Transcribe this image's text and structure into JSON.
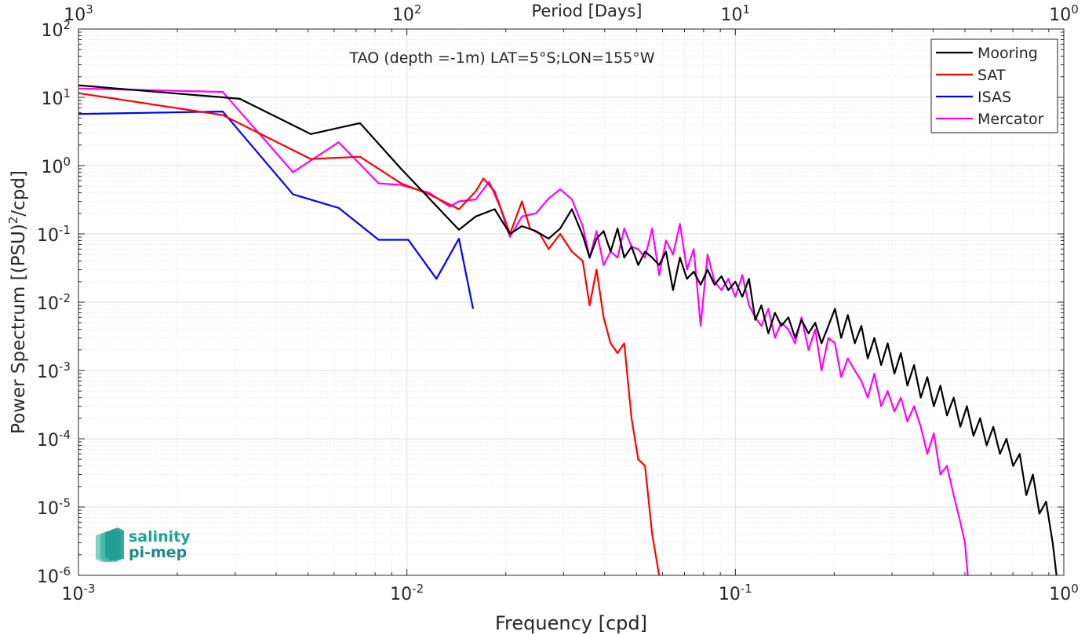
{
  "chart_data": {
    "type": "line",
    "title": "TAO (depth =-1m) LAT=5°S;LON=155°W",
    "xlabel": "Frequency [cpd]",
    "ylabel": "Power Spectrum [(PSU)²/cpd]",
    "ylabel_parts": {
      "a": "Power Spectrum [(PSU)",
      "sup": "2",
      "b": "/cpd]"
    },
    "top_xlabel": "Period [Days]",
    "x_scale": "log",
    "y_scale": "log",
    "xlim": [
      0.001,
      1
    ],
    "ylim": [
      1e-06,
      100
    ],
    "grid": true,
    "legend_position": "top-right",
    "x_ticks": [
      {
        "value": 0.001,
        "base": "10",
        "exp": "-3"
      },
      {
        "value": 0.01,
        "base": "10",
        "exp": "-2"
      },
      {
        "value": 0.1,
        "base": "10",
        "exp": "-1"
      },
      {
        "value": 1,
        "base": "10",
        "exp": "0"
      }
    ],
    "top_ticks": [
      {
        "value": 0.001,
        "base": "10",
        "exp": "3"
      },
      {
        "value": 0.01,
        "base": "10",
        "exp": "2"
      },
      {
        "value": 0.1,
        "base": "10",
        "exp": "1"
      },
      {
        "value": 1,
        "base": "10",
        "exp": "0"
      }
    ],
    "y_ticks": [
      {
        "value": 100,
        "base": "10",
        "exp": "2"
      },
      {
        "value": 10,
        "base": "10",
        "exp": "1"
      },
      {
        "value": 1,
        "base": "10",
        "exp": "0"
      },
      {
        "value": 0.1,
        "base": "10",
        "exp": "-1"
      },
      {
        "value": 0.01,
        "base": "10",
        "exp": "-2"
      },
      {
        "value": 0.001,
        "base": "10",
        "exp": "-3"
      },
      {
        "value": 0.0001,
        "base": "10",
        "exp": "-4"
      },
      {
        "value": 1e-05,
        "base": "10",
        "exp": "-5"
      },
      {
        "value": 1e-06,
        "base": "10",
        "exp": "-6"
      }
    ],
    "series": [
      {
        "name": "Mooring",
        "color": "#000000",
        "points": [
          [
            0.001,
            15
          ],
          [
            0.00275,
            10
          ],
          [
            0.0031,
            9.5
          ],
          [
            0.0051,
            2.9
          ],
          [
            0.0072,
            4.2
          ],
          [
            0.0096,
            0.9
          ],
          [
            0.0117,
            0.33
          ],
          [
            0.0144,
            0.115
          ],
          [
            0.0162,
            0.18
          ],
          [
            0.0185,
            0.23
          ],
          [
            0.0206,
            0.1
          ],
          [
            0.0224,
            0.13
          ],
          [
            0.0247,
            0.11
          ],
          [
            0.027,
            0.085
          ],
          [
            0.0293,
            0.12
          ],
          [
            0.0318,
            0.23
          ],
          [
            0.0343,
            0.095
          ],
          [
            0.036,
            0.045
          ],
          [
            0.0378,
            0.085
          ],
          [
            0.0397,
            0.11
          ],
          [
            0.0417,
            0.055
          ],
          [
            0.0438,
            0.12
          ],
          [
            0.0459,
            0.045
          ],
          [
            0.0483,
            0.065
          ],
          [
            0.0506,
            0.035
          ],
          [
            0.0531,
            0.055
          ],
          [
            0.0558,
            0.045
          ],
          [
            0.0586,
            0.035
          ],
          [
            0.0615,
            0.055
          ],
          [
            0.0646,
            0.015
          ],
          [
            0.0678,
            0.045
          ],
          [
            0.0712,
            0.022
          ],
          [
            0.0747,
            0.028
          ],
          [
            0.0784,
            0.018
          ],
          [
            0.0823,
            0.03
          ],
          [
            0.0864,
            0.018
          ],
          [
            0.0907,
            0.024
          ],
          [
            0.0952,
            0.015
          ],
          [
            0.1,
            0.02
          ],
          [
            0.105,
            0.012
          ],
          [
            0.11,
            0.022
          ],
          [
            0.115,
            0.0055
          ],
          [
            0.12,
            0.009
          ],
          [
            0.126,
            0.0035
          ],
          [
            0.132,
            0.007
          ],
          [
            0.138,
            0.0045
          ],
          [
            0.145,
            0.006
          ],
          [
            0.152,
            0.003
          ],
          [
            0.159,
            0.0055
          ],
          [
            0.167,
            0.0035
          ],
          [
            0.175,
            0.005
          ],
          [
            0.183,
            0.0025
          ],
          [
            0.192,
            0.0045
          ],
          [
            0.201,
            0.008
          ],
          [
            0.21,
            0.003
          ],
          [
            0.22,
            0.0065
          ],
          [
            0.231,
            0.0025
          ],
          [
            0.242,
            0.0045
          ],
          [
            0.253,
            0.0015
          ],
          [
            0.265,
            0.003
          ],
          [
            0.278,
            0.0012
          ],
          [
            0.291,
            0.0025
          ],
          [
            0.305,
            0.0009
          ],
          [
            0.319,
            0.0018
          ],
          [
            0.334,
            0.0006
          ],
          [
            0.35,
            0.0012
          ],
          [
            0.367,
            0.0004
          ],
          [
            0.384,
            0.0008
          ],
          [
            0.402,
            0.0003
          ],
          [
            0.421,
            0.0006
          ],
          [
            0.441,
            0.00022
          ],
          [
            0.462,
            0.0004
          ],
          [
            0.484,
            0.00015
          ],
          [
            0.507,
            0.0003
          ],
          [
            0.531,
            0.00011
          ],
          [
            0.556,
            0.0002
          ],
          [
            0.582,
            8e-05
          ],
          [
            0.61,
            0.00015
          ],
          [
            0.639,
            6e-05
          ],
          [
            0.669,
            0.0001
          ],
          [
            0.701,
            4e-05
          ],
          [
            0.734,
            6e-05
          ],
          [
            0.769,
            1.5e-05
          ],
          [
            0.805,
            3e-05
          ],
          [
            0.843,
            8e-06
          ],
          [
            0.883,
            1.2e-05
          ],
          [
            0.925,
            3e-06
          ],
          [
            0.95,
            1e-06
          ]
        ]
      },
      {
        "name": "SAT",
        "color": "#ff0000",
        "points": [
          [
            0.001,
            11.5
          ],
          [
            0.00275,
            5.5
          ],
          [
            0.0051,
            1.25
          ],
          [
            0.0072,
            1.35
          ],
          [
            0.0096,
            0.55
          ],
          [
            0.0117,
            0.38
          ],
          [
            0.0144,
            0.23
          ],
          [
            0.0162,
            0.42
          ],
          [
            0.0171,
            0.65
          ],
          [
            0.0185,
            0.42
          ],
          [
            0.0206,
            0.1
          ],
          [
            0.0224,
            0.3
          ],
          [
            0.0237,
            0.12
          ],
          [
            0.0254,
            0.1
          ],
          [
            0.027,
            0.06
          ],
          [
            0.0293,
            0.1
          ],
          [
            0.0318,
            0.055
          ],
          [
            0.0343,
            0.04
          ],
          [
            0.036,
            0.009
          ],
          [
            0.0378,
            0.03
          ],
          [
            0.0397,
            0.006
          ],
          [
            0.0417,
            0.0025
          ],
          [
            0.0438,
            0.0018
          ],
          [
            0.0459,
            0.0025
          ],
          [
            0.0483,
            0.0002
          ],
          [
            0.0506,
            5e-05
          ],
          [
            0.0531,
            4e-05
          ],
          [
            0.0558,
            4e-06
          ],
          [
            0.0586,
            1e-06
          ]
        ]
      },
      {
        "name": "ISAS",
        "color": "#0000ff",
        "points": [
          [
            0.001,
            5.7
          ],
          [
            0.00275,
            6.2
          ],
          [
            0.0045,
            0.38
          ],
          [
            0.0062,
            0.24
          ],
          [
            0.0082,
            0.082
          ],
          [
            0.0101,
            0.082
          ],
          [
            0.0123,
            0.022
          ],
          [
            0.0144,
            0.085
          ],
          [
            0.0159,
            0.008
          ]
        ]
      },
      {
        "name": "Mercator",
        "color": "#ff00ff",
        "points": [
          [
            0.001,
            13.5
          ],
          [
            0.00275,
            12
          ],
          [
            0.0045,
            0.8
          ],
          [
            0.0062,
            2.2
          ],
          [
            0.0082,
            0.55
          ],
          [
            0.0096,
            0.52
          ],
          [
            0.0117,
            0.4
          ],
          [
            0.0135,
            0.25
          ],
          [
            0.0144,
            0.3
          ],
          [
            0.0162,
            0.32
          ],
          [
            0.0178,
            0.58
          ],
          [
            0.0192,
            0.25
          ],
          [
            0.0206,
            0.09
          ],
          [
            0.0224,
            0.18
          ],
          [
            0.0247,
            0.2
          ],
          [
            0.027,
            0.33
          ],
          [
            0.0293,
            0.45
          ],
          [
            0.0318,
            0.32
          ],
          [
            0.0343,
            0.13
          ],
          [
            0.036,
            0.045
          ],
          [
            0.0378,
            0.11
          ],
          [
            0.0397,
            0.035
          ],
          [
            0.0417,
            0.055
          ],
          [
            0.0438,
            0.045
          ],
          [
            0.0459,
            0.12
          ],
          [
            0.0483,
            0.065
          ],
          [
            0.0506,
            0.06
          ],
          [
            0.0531,
            0.045
          ],
          [
            0.0558,
            0.12
          ],
          [
            0.0586,
            0.025
          ],
          [
            0.0615,
            0.08
          ],
          [
            0.0646,
            0.05
          ],
          [
            0.0678,
            0.14
          ],
          [
            0.0712,
            0.03
          ],
          [
            0.0747,
            0.06
          ],
          [
            0.0784,
            0.0045
          ],
          [
            0.0823,
            0.05
          ],
          [
            0.0864,
            0.02
          ],
          [
            0.0907,
            0.015
          ],
          [
            0.0952,
            0.022
          ],
          [
            0.1,
            0.012
          ],
          [
            0.105,
            0.025
          ],
          [
            0.11,
            0.009
          ],
          [
            0.115,
            0.006
          ],
          [
            0.12,
            0.0045
          ],
          [
            0.126,
            0.008
          ],
          [
            0.132,
            0.003
          ],
          [
            0.138,
            0.005
          ],
          [
            0.145,
            0.004
          ],
          [
            0.152,
            0.0025
          ],
          [
            0.159,
            0.006
          ],
          [
            0.167,
            0.002
          ],
          [
            0.175,
            0.004
          ],
          [
            0.183,
            0.001
          ],
          [
            0.192,
            0.003
          ],
          [
            0.201,
            0.0025
          ],
          [
            0.21,
            0.0008
          ],
          [
            0.22,
            0.0015
          ],
          [
            0.231,
            0.001
          ],
          [
            0.242,
            0.0007
          ],
          [
            0.253,
            0.0004
          ],
          [
            0.265,
            0.0009
          ],
          [
            0.278,
            0.0003
          ],
          [
            0.291,
            0.0005
          ],
          [
            0.305,
            0.00025
          ],
          [
            0.319,
            0.0004
          ],
          [
            0.334,
            0.00018
          ],
          [
            0.35,
            0.0003
          ],
          [
            0.367,
            0.00015
          ],
          [
            0.384,
            6e-05
          ],
          [
            0.402,
            0.00012
          ],
          [
            0.421,
            3e-05
          ],
          [
            0.441,
            4e-05
          ],
          [
            0.462,
            1.5e-05
          ],
          [
            0.484,
            6e-06
          ],
          [
            0.5,
            3e-06
          ],
          [
            0.51,
            1e-06
          ]
        ]
      }
    ]
  },
  "logo": {
    "line1": "salinity",
    "line2": "pi-mep"
  }
}
